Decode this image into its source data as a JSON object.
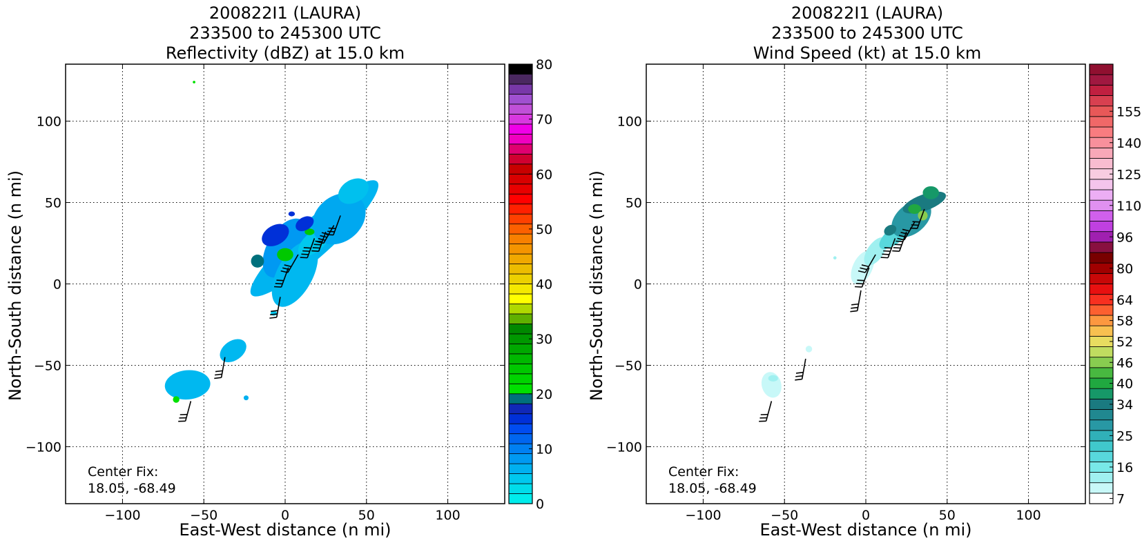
{
  "chart_data": [
    {
      "type": "heatmap",
      "title": [
        "200822I1 (LAURA)",
        "233500 to 245300 UTC",
        "Reflectivity (dBZ) at 15.0 km"
      ],
      "xlabel": "East-West distance (n mi)",
      "ylabel": "North-South distance (n mi)",
      "xlim": [
        -135,
        135
      ],
      "ylim": [
        -135,
        135
      ],
      "xticks": [
        -100,
        -50,
        0,
        50,
        100
      ],
      "yticks": [
        -100,
        -50,
        0,
        50,
        100
      ],
      "xtick_labels": [
        "−100",
        "−50",
        "0",
        "50",
        "100"
      ],
      "ytick_labels": [
        "−100",
        "−50",
        "0",
        "50",
        "100"
      ],
      "grid": true,
      "annotation": [
        "Center Fix:",
        "18.05, -68.49"
      ],
      "colorbar": {
        "min": 0,
        "max": 80,
        "tick_values": [
          0,
          10,
          20,
          30,
          40,
          50,
          60,
          70,
          80
        ],
        "tick_labels": [
          "0",
          "10",
          "20",
          "30",
          "40",
          "50",
          "60",
          "70",
          "80"
        ],
        "colors": [
          "#00ecec",
          "#00dcea",
          "#00c8ee",
          "#00b0f0",
          "#0099f2",
          "#0080f2",
          "#0066f0",
          "#004cf0",
          "#0030d8",
          "#1028b8",
          "#00707c",
          "#00e000",
          "#00d400",
          "#00c800",
          "#00b800",
          "#00a800",
          "#009800",
          "#008800",
          "#60b000",
          "#b0d800",
          "#ffff00",
          "#f4e800",
          "#ecd000",
          "#ecbc00",
          "#f0a800",
          "#f49400",
          "#f88000",
          "#fc6000",
          "#ff4000",
          "#ff2000",
          "#ff0000",
          "#e80000",
          "#d80000",
          "#c80000",
          "#d00030",
          "#e00070",
          "#f000c0",
          "#f000e8",
          "#d838e0",
          "#c050d8",
          "#a050d0",
          "#7838a8",
          "#4a2860",
          "#000000"
        ]
      },
      "echo_regions": [
        {
          "cx": 18,
          "cy": 28,
          "rx": 52,
          "ry": 11,
          "angle": 42,
          "color": "#00b4f0"
        },
        {
          "cx": 0,
          "cy": 22,
          "rx": 20,
          "ry": 11,
          "angle": 60,
          "color": "#0099f2"
        },
        {
          "cx": 6,
          "cy": 6,
          "rx": 22,
          "ry": 11,
          "angle": 62,
          "color": "#00b8f0"
        },
        {
          "cx": 18,
          "cy": 26,
          "rx": 12,
          "ry": 6,
          "angle": 40,
          "color": "#00c8ee"
        },
        {
          "cx": 33,
          "cy": 40,
          "rx": 18,
          "ry": 14,
          "angle": 40,
          "color": "#00a8f0"
        },
        {
          "cx": 42,
          "cy": 57,
          "rx": 10,
          "ry": 7,
          "angle": 30,
          "color": "#00c0ee"
        },
        {
          "cx": 0,
          "cy": 18,
          "rx": 5,
          "ry": 4,
          "angle": 0,
          "color": "#00c800"
        },
        {
          "cx": 15,
          "cy": 32,
          "rx": 3,
          "ry": 2,
          "angle": 0,
          "color": "#00c800"
        },
        {
          "cx": -6,
          "cy": 30,
          "rx": 9,
          "ry": 6,
          "angle": 30,
          "color": "#0030d8"
        },
        {
          "cx": 12,
          "cy": 37,
          "rx": 6,
          "ry": 4,
          "angle": 30,
          "color": "#0030d8"
        },
        {
          "cx": -17,
          "cy": 14,
          "rx": 4,
          "ry": 4,
          "angle": 0,
          "color": "#00707c"
        },
        {
          "cx": -32,
          "cy": -41,
          "rx": 9,
          "ry": 6,
          "angle": 35,
          "color": "#00b8f0"
        },
        {
          "cx": -60,
          "cy": -62,
          "rx": 14,
          "ry": 9,
          "angle": 5,
          "color": "#00b8f0"
        },
        {
          "cx": -67,
          "cy": -71,
          "rx": 2,
          "ry": 2,
          "angle": 0,
          "color": "#00e000"
        },
        {
          "cx": -24,
          "cy": -70,
          "rx": 1.5,
          "ry": 1.5,
          "angle": 0,
          "color": "#00b0f0"
        },
        {
          "cx": -7,
          "cy": -18,
          "rx": 2,
          "ry": 1.5,
          "angle": 0,
          "color": "#00c8ee"
        },
        {
          "cx": -56,
          "cy": 124,
          "rx": 0.8,
          "ry": 0.8,
          "angle": 0,
          "color": "#00e000"
        },
        {
          "cx": 4,
          "cy": 43,
          "rx": 2,
          "ry": 1.5,
          "angle": 0,
          "color": "#0030d8"
        }
      ],
      "wind_barbs": [
        {
          "x": -3,
          "y": -8,
          "dir": 190,
          "speed": 30
        },
        {
          "x": 2,
          "y": 10,
          "dir": 200,
          "speed": 30
        },
        {
          "x": 8,
          "y": 18,
          "dir": 210,
          "speed": 30
        },
        {
          "x": 18,
          "y": 28,
          "dir": 200,
          "speed": 40
        },
        {
          "x": 25,
          "y": 32,
          "dir": 200,
          "speed": 40
        },
        {
          "x": 30,
          "y": 36,
          "dir": 210,
          "speed": 35
        },
        {
          "x": 34,
          "y": 42,
          "dir": 200,
          "speed": 30
        },
        {
          "x": -37,
          "y": -45,
          "dir": 190,
          "speed": 25
        },
        {
          "x": -58,
          "y": -72,
          "dir": 195,
          "speed": 30
        }
      ]
    },
    {
      "type": "heatmap",
      "title": [
        "200822I1 (LAURA)",
        "233500 to 245300 UTC",
        "Wind Speed (kt) at 15.0 km"
      ],
      "xlabel": "East-West distance (n mi)",
      "ylabel": "North-South distance (n mi)",
      "xlim": [
        -135,
        135
      ],
      "ylim": [
        -135,
        135
      ],
      "xticks": [
        -100,
        -50,
        0,
        50,
        100
      ],
      "yticks": [
        -100,
        -50,
        0,
        50,
        100
      ],
      "xtick_labels": [
        "−100",
        "−50",
        "0",
        "50",
        "100"
      ],
      "ytick_labels": [
        "−100",
        "−50",
        "0",
        "50",
        "100"
      ],
      "grid": true,
      "annotation": [
        "Center Fix:",
        "18.05, -68.49"
      ],
      "colorbar": {
        "tick_labels": [
          "7",
          "16",
          "25",
          "34",
          "40",
          "46",
          "52",
          "58",
          "64",
          "80",
          "96",
          "110",
          "125",
          "140",
          "155"
        ],
        "tick_bins": [
          0,
          3,
          6,
          9,
          11,
          13,
          15,
          17,
          19,
          22,
          25,
          28,
          31,
          34,
          37
        ],
        "colors": [
          "#ffffff",
          "#c8f8f8",
          "#a0f0f0",
          "#78e8e8",
          "#58d8dc",
          "#40c8cc",
          "#30b0b8",
          "#2898a4",
          "#208890",
          "#1a7a80",
          "#169868",
          "#20a840",
          "#48b840",
          "#88cc50",
          "#c0dc60",
          "#e8dc60",
          "#f8c050",
          "#fc9840",
          "#fc6030",
          "#f83020",
          "#e81010",
          "#c80808",
          "#a00000",
          "#780000",
          "#881040",
          "#a020b0",
          "#c040e0",
          "#d060ec",
          "#e090f0",
          "#ecaef4",
          "#f4c4ec",
          "#f8cce0",
          "#f8bcd0",
          "#f8a8b8",
          "#f8909c",
          "#f87c80",
          "#f06868",
          "#e85858",
          "#d84050",
          "#c02040",
          "#a01840",
          "#901030"
        ]
      },
      "echo_regions": [
        {
          "cx": -2,
          "cy": 10,
          "rx": 11,
          "ry": 6,
          "angle": 65,
          "color": "#c8f8f8"
        },
        {
          "cx": 6,
          "cy": 20,
          "rx": 10,
          "ry": 5,
          "angle": 55,
          "color": "#a0f0f0"
        },
        {
          "cx": 18,
          "cy": 30,
          "rx": 12,
          "ry": 5,
          "angle": 40,
          "color": "#58d8dc"
        },
        {
          "cx": 28,
          "cy": 40,
          "rx": 14,
          "ry": 9,
          "angle": 40,
          "color": "#2898a4"
        },
        {
          "cx": 36,
          "cy": 50,
          "rx": 14,
          "ry": 5,
          "angle": 20,
          "color": "#1a7a80"
        },
        {
          "cx": 40,
          "cy": 56,
          "rx": 5,
          "ry": 4,
          "angle": 0,
          "color": "#169868"
        },
        {
          "cx": 30,
          "cy": 46,
          "rx": 4,
          "ry": 3,
          "angle": 0,
          "color": "#20a840"
        },
        {
          "cx": 35,
          "cy": 42,
          "rx": 3,
          "ry": 3,
          "angle": 0,
          "color": "#88cc50"
        },
        {
          "cx": 15,
          "cy": 33,
          "rx": 4,
          "ry": 3,
          "angle": 30,
          "color": "#1a7a80"
        },
        {
          "cx": -19,
          "cy": 16,
          "rx": 1,
          "ry": 1,
          "angle": 0,
          "color": "#a0f0f0"
        },
        {
          "cx": -35,
          "cy": -40,
          "rx": 2,
          "ry": 2,
          "angle": 0,
          "color": "#c8f8f8"
        },
        {
          "cx": -58,
          "cy": -62,
          "rx": 6,
          "ry": 8,
          "angle": 15,
          "color": "#c8f8f8"
        },
        {
          "cx": -57,
          "cy": -58,
          "rx": 3,
          "ry": 2,
          "angle": 0,
          "color": "#a0f0f0"
        }
      ],
      "wind_barbs": [
        {
          "x": -3,
          "y": -4,
          "dir": 190,
          "speed": 30
        },
        {
          "x": 2,
          "y": 10,
          "dir": 200,
          "speed": 30
        },
        {
          "x": 6,
          "y": 18,
          "dir": 210,
          "speed": 30
        },
        {
          "x": 18,
          "y": 28,
          "dir": 200,
          "speed": 40
        },
        {
          "x": 25,
          "y": 32,
          "dir": 200,
          "speed": 40
        },
        {
          "x": 30,
          "y": 38,
          "dir": 210,
          "speed": 35
        },
        {
          "x": 36,
          "y": 46,
          "dir": 200,
          "speed": 30
        },
        {
          "x": -37,
          "y": -46,
          "dir": 190,
          "speed": 25
        },
        {
          "x": -58,
          "y": -72,
          "dir": 195,
          "speed": 30
        }
      ]
    }
  ]
}
